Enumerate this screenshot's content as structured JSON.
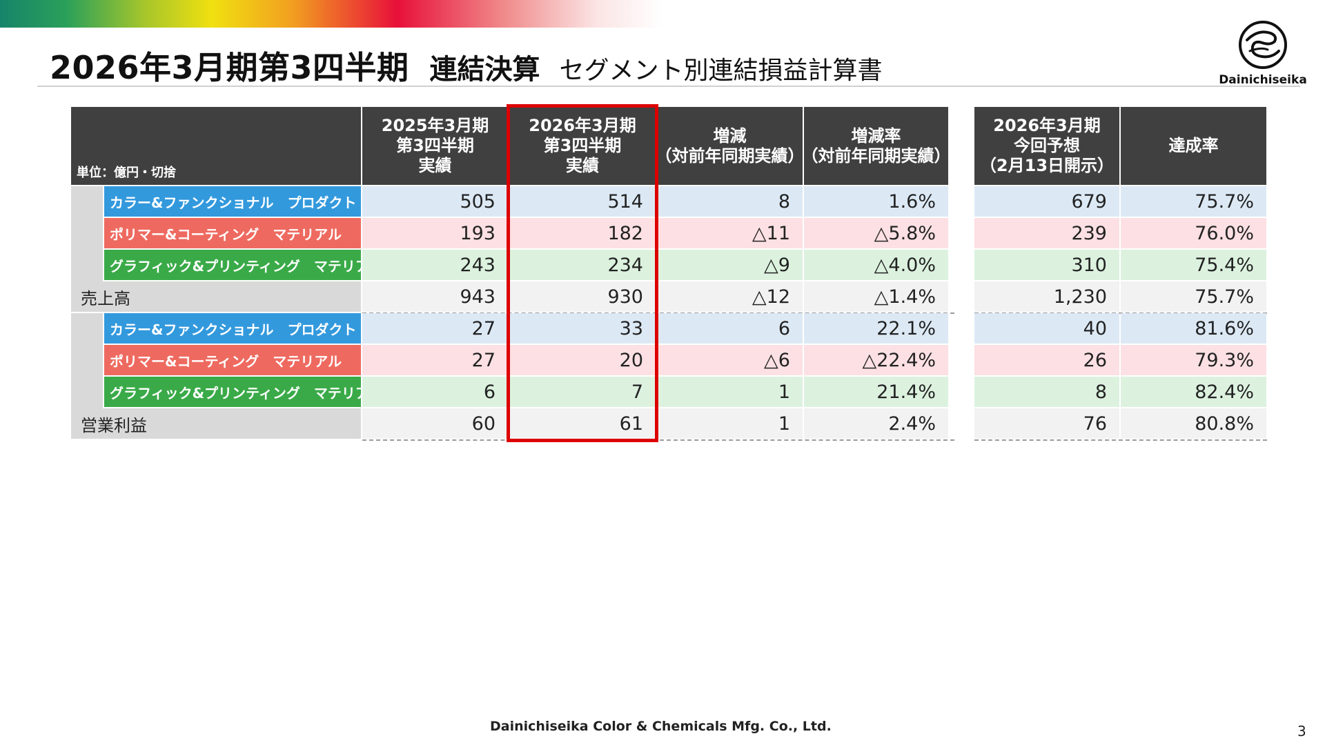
{
  "title": {
    "main": "2026年3月期第3四半期",
    "sub": "連結決算",
    "sub2": "セグメント別連結損益計算書"
  },
  "logo": {
    "text": "Dainichiseika",
    "icon": "company-logo-icon"
  },
  "table": {
    "unit": "単位：億円・切捨",
    "headers": [
      [
        "2025年3月期",
        "第3四半期",
        "実績"
      ],
      [
        "2026年3月期",
        "第3四半期",
        "実績"
      ],
      [
        "増減",
        "（対前年同期実績）"
      ],
      [
        "増減率",
        "（対前年同期実績）"
      ],
      [
        "2026年3月期",
        "今回予想",
        "（2月13日開示）"
      ],
      [
        "達成率"
      ]
    ],
    "rows": [
      {
        "label": "カラー&ファンクショナル　プロダクト",
        "kind": "blue",
        "values": [
          "505",
          "514",
          "8",
          "1.6%",
          "679",
          "75.7%"
        ]
      },
      {
        "label": "ポリマー&コーティング　マテリアル",
        "kind": "red",
        "values": [
          "193",
          "182",
          "△11",
          "△5.8%",
          "239",
          "76.0%"
        ]
      },
      {
        "label": "グラフィック&プリンティング　マテリアル",
        "kind": "green",
        "values": [
          "243",
          "234",
          "△9",
          "△4.0%",
          "310",
          "75.4%"
        ]
      },
      {
        "label": "売上高",
        "kind": "total",
        "values": [
          "943",
          "930",
          "△12",
          "△1.4%",
          "1,230",
          "75.7%"
        ]
      },
      {
        "label": "カラー&ファンクショナル　プロダクト",
        "kind": "blue",
        "values": [
          "27",
          "33",
          "6",
          "22.1%",
          "40",
          "81.6%"
        ]
      },
      {
        "label": "ポリマー&コーティング　マテリアル",
        "kind": "red",
        "values": [
          "27",
          "20",
          "△6",
          "△22.4%",
          "26",
          "79.3%"
        ]
      },
      {
        "label": "グラフィック&プリンティング　マテリアル",
        "kind": "green",
        "values": [
          "6",
          "7",
          "1",
          "21.4%",
          "8",
          "82.4%"
        ]
      },
      {
        "label": "営業利益",
        "kind": "total",
        "values": [
          "60",
          "61",
          "1",
          "2.4%",
          "76",
          "80.8%"
        ]
      }
    ],
    "colors": {
      "header": "#404040",
      "segment_blue": "#3399dd",
      "segment_red": "#ee6a60",
      "segment_green": "#3aaa48",
      "highlight": "#dd0000"
    }
  },
  "footer": {
    "company": "Dainichiseika Color & Chemicals Mfg. Co., Ltd.",
    "page": "3"
  }
}
